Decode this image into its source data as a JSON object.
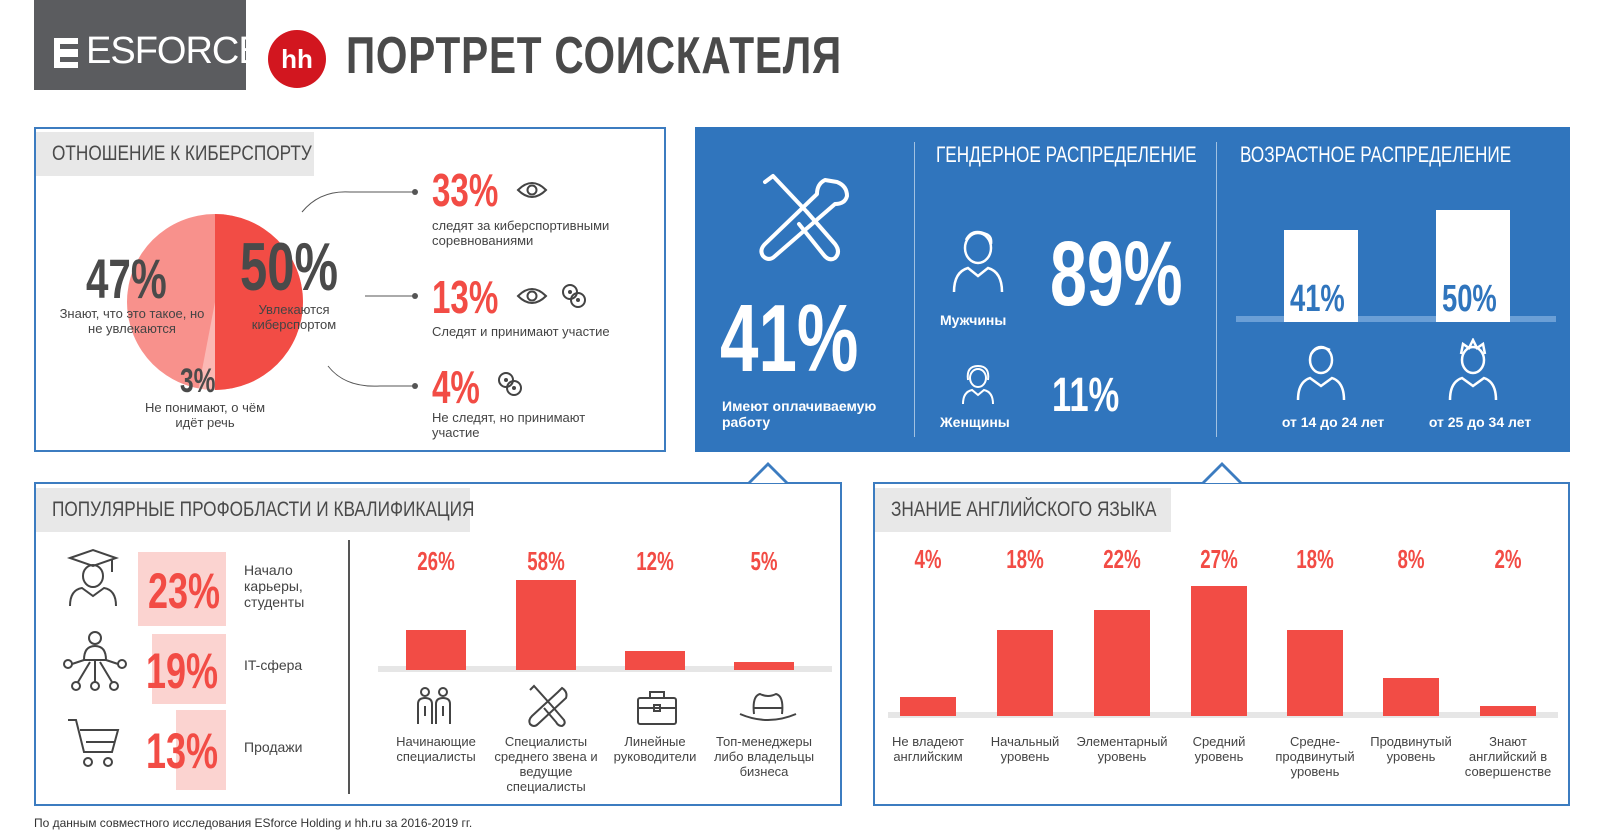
{
  "header": {
    "brand": "ESFORCE",
    "partner": "hh",
    "title": "ПОРТРЕТ СОИСКАТЕЛЯ"
  },
  "esports": {
    "title": "ОТНОШЕНИЕ К КИБЕРСПОРТУ",
    "slices": [
      {
        "value": "50%",
        "label": "Увлекаются киберспортом"
      },
      {
        "value": "47%",
        "label": "Знают, что это такое, но не увлекаются"
      },
      {
        "value": "3%",
        "label": "Не понимают, о чём идёт речь"
      }
    ],
    "details": [
      {
        "value": "33%",
        "text": "следят за киберспортивными соревнованиями"
      },
      {
        "value": "13%",
        "text": "Следят и принимают участие"
      },
      {
        "value": "4%",
        "text": "Не следят, но принимают участие"
      }
    ],
    "colors": {
      "main": "#f24c45",
      "secondary": "#f8918c",
      "light": "#fbb8b4"
    }
  },
  "work": {
    "value": "41%",
    "label": "Имеют оплачиваемую работу"
  },
  "gender": {
    "title": "ГЕНДЕРНОЕ РАСПРЕДЕЛЕНИЕ",
    "male": {
      "label": "Мужчины",
      "value": "89%"
    },
    "female": {
      "label": "Женщины",
      "value": "11%"
    }
  },
  "age": {
    "title": "ВОЗРАСТНОЕ РАСПРЕДЕЛЕНИЕ",
    "groups": [
      {
        "value": "41%",
        "label": "от 14 до 24 лет"
      },
      {
        "value": "50%",
        "label": "от 25 до 34 лет"
      }
    ]
  },
  "profareas": {
    "title": "ПОПУЛЯРНЫЕ ПРОФОБЛАСТИ И КВАЛИФИКАЦИЯ",
    "areas": [
      {
        "value": "23%",
        "label": "Начало карьеры, студенты",
        "icon": "graduate-icon"
      },
      {
        "value": "19%",
        "label": "IT-сфера",
        "icon": "network-icon"
      },
      {
        "value": "13%",
        "label": "Продажи",
        "icon": "cart-icon"
      }
    ],
    "qualification": {
      "categories": [
        "Начинающие специалисты",
        "Специалисты среднего звена и ведущие специалисты",
        "Линейные руководители",
        "Топ-менеджеры либо владельцы бизнеса"
      ],
      "values": [
        26,
        58,
        12,
        5
      ],
      "labels": [
        "26%",
        "58%",
        "12%",
        "5%"
      ]
    }
  },
  "english": {
    "title": "ЗНАНИЕ АНГЛИЙСКОГО ЯЗЫКА",
    "categories": [
      "Не владеют английским",
      "Начальный уровень",
      "Элементарный уровень",
      "Средний уровень",
      "Средне-продвинутый уровень",
      "Продвинутый уровень",
      "Знают английский в совершенстве"
    ],
    "values": [
      4,
      18,
      22,
      27,
      18,
      8,
      2
    ],
    "labels": [
      "4%",
      "18%",
      "22%",
      "27%",
      "18%",
      "8%",
      "2%"
    ]
  },
  "footer": {
    "source": "По данным совместного исследования ESforce Holding и hh.ru за 2016-2019 гг."
  }
}
